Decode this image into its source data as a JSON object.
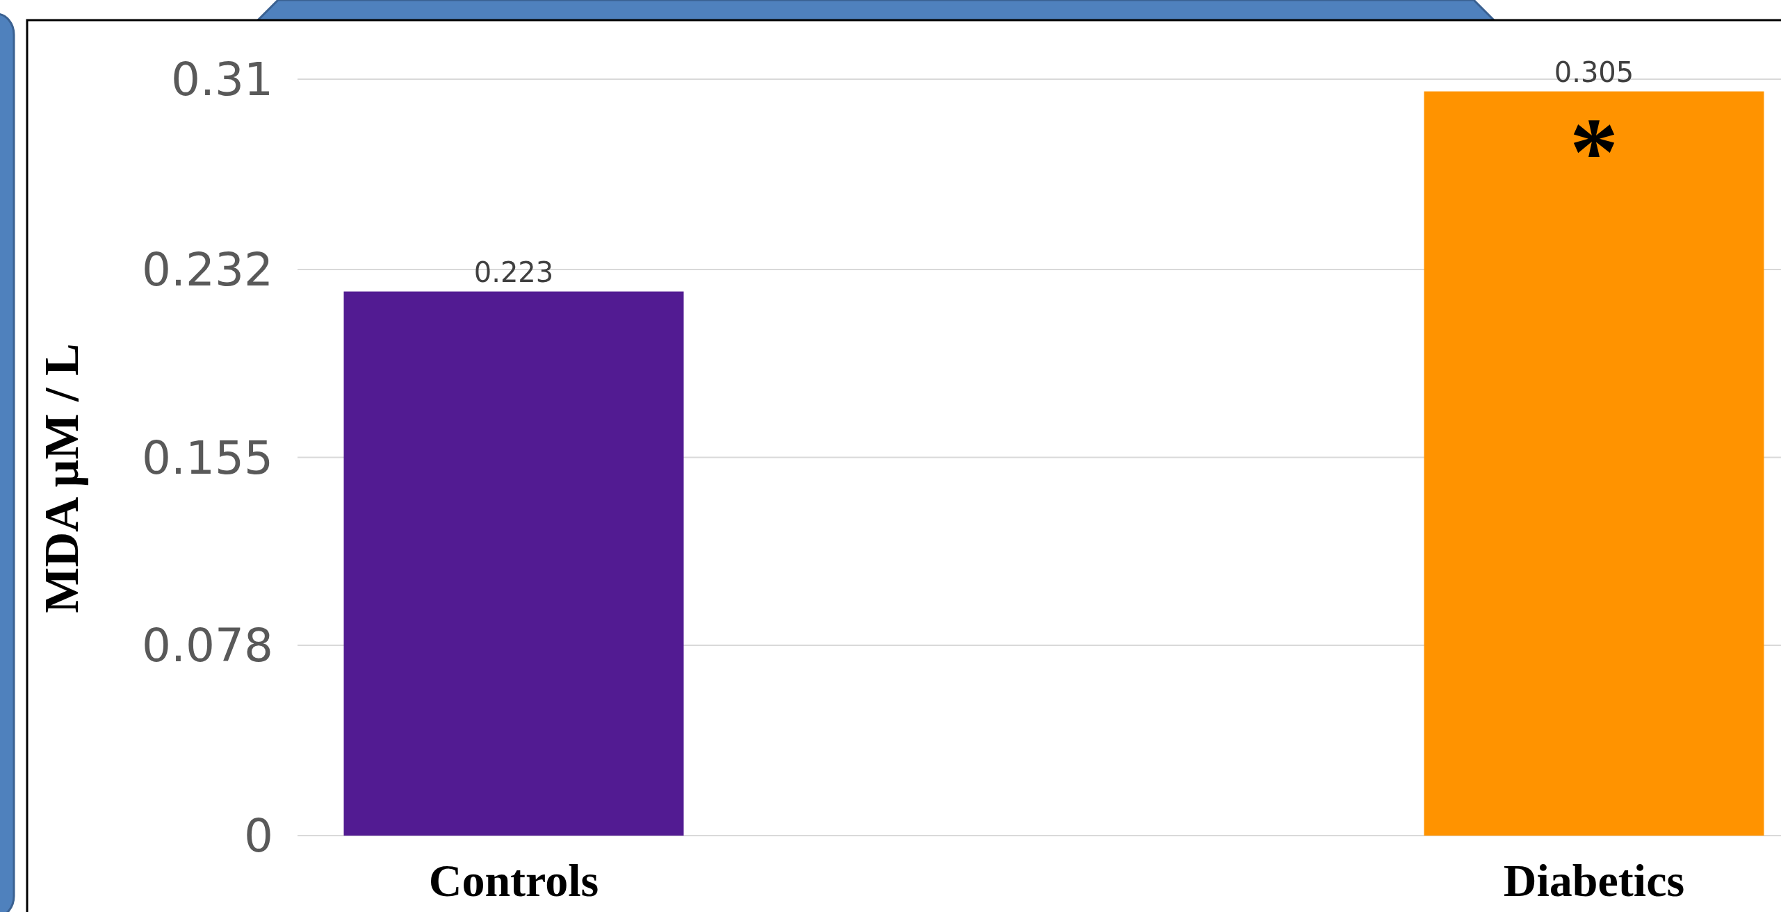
{
  "chart_data": {
    "type": "bar",
    "ylabel": "MDA µM / L",
    "categories": [
      "Controls",
      "Diabetics"
    ],
    "values": [
      0.223,
      0.305
    ],
    "colors": [
      "#521b92",
      "#ff9300"
    ],
    "ylim": [
      0,
      0.31
    ],
    "yticks": [
      0,
      0.078,
      0.155,
      0.232,
      0.31
    ],
    "grid": "y",
    "data_labels": true,
    "annotations": [
      "*"
    ]
  }
}
